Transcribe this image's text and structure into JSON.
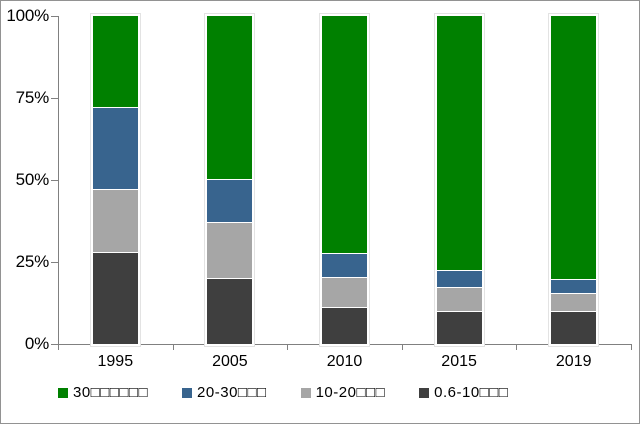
{
  "chart_data": {
    "type": "bar",
    "stacked": true,
    "title": "",
    "xlabel": "",
    "ylabel": "",
    "grid": false,
    "legend_position": "bottom",
    "ylim": [
      0,
      100
    ],
    "categories": [
      "1995",
      "2005",
      "2010",
      "2015",
      "2019"
    ],
    "series": [
      {
        "name": "30□□□□□□",
        "color": "#008000",
        "values": [
          28,
          50,
          73,
          78,
          81
        ]
      },
      {
        "name": "20-30□□□",
        "color": "#38648E",
        "values": [
          25,
          13,
          7,
          5,
          4
        ]
      },
      {
        "name": "10-20□□□",
        "color": "#A6A6A6",
        "values": [
          19,
          17,
          9,
          7,
          5
        ]
      },
      {
        "name": "0.6-10□□□",
        "color": "#3F3F3F",
        "values": [
          28,
          20,
          11,
          10,
          10
        ]
      }
    ],
    "y_axis": {
      "tick_labels": [
        "100%",
        "75%",
        "50%",
        "25%",
        "0%"
      ],
      "tick_values": [
        100,
        75,
        50,
        25,
        0
      ]
    },
    "colors": {
      "axis": "#808080",
      "chart_border": "#929292",
      "background": "#ffffff",
      "text": "#000000"
    }
  }
}
